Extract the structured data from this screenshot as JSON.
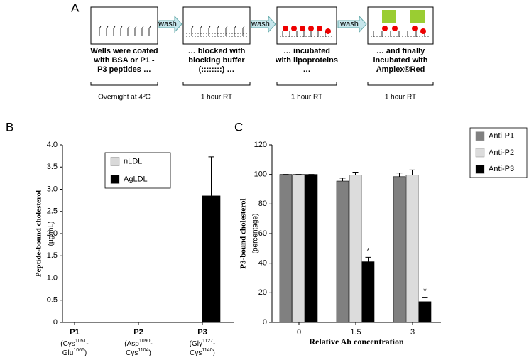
{
  "panel_a": {
    "label": "A",
    "arrows": [
      "wash",
      "wash",
      "wash"
    ],
    "steps": [
      {
        "lines": [
          "Wells were coated",
          "with BSA or P1 -",
          "P3 peptides …"
        ],
        "time": "Overnight at 4ºC"
      },
      {
        "lines": [
          "… blocked with",
          "blocking buffer",
          "(::::::::) …"
        ],
        "time": "1 hour RT"
      },
      {
        "lines": [
          "… incubated",
          "with lipoproteins",
          "…"
        ],
        "time": "1 hour RT"
      },
      {
        "lines": [
          "… and finally",
          "incubated with",
          "Amplex®Red"
        ],
        "time": "1 hour RT"
      }
    ]
  },
  "chart_data": [
    {
      "type": "bar",
      "panel_label": "B",
      "y_label": "Peptide-bound cholesterol",
      "y_unit": "(µg/mL)",
      "categories": [
        "P1",
        "P2",
        "P3"
      ],
      "category_details": [
        [
          [
            "(Cys",
            "1051",
            "-"
          ],
          [
            "Glu",
            "1066",
            ")"
          ]
        ],
        [
          [
            "(Asp",
            "1090",
            "-"
          ],
          [
            "Cys",
            "1104",
            ")"
          ]
        ],
        [
          [
            "(Gly",
            "1127",
            "-"
          ],
          [
            "Cys",
            "1140",
            ")"
          ]
        ]
      ],
      "series": [
        {
          "name": "nLDL",
          "color": "#d9d9d9",
          "values": [
            0,
            0,
            0
          ],
          "errors": [
            0,
            0,
            0
          ]
        },
        {
          "name": "AgLDL",
          "color": "#000000",
          "values": [
            0,
            0,
            2.85
          ],
          "errors": [
            0,
            0,
            0.88
          ]
        }
      ],
      "ylim": [
        0,
        4
      ],
      "yticks": [
        0,
        0.5,
        {
          "value": 1,
          "label": "1.0"
        },
        1.5,
        {
          "value": 2,
          "label": "2.0"
        },
        2.5,
        {
          "value": 3,
          "label": "3.0"
        },
        3.5,
        {
          "value": 4,
          "label": "4.0"
        }
      ],
      "legend": "upper left"
    },
    {
      "type": "bar",
      "panel_label": "C",
      "y_label": "P3-bound cholesterol",
      "y_unit": "(percentage)",
      "x_label": "Relative Ab concentration",
      "categories": [
        "0",
        "1.5",
        "3"
      ],
      "series": [
        {
          "name": "Anti-P1",
          "color": "#808080",
          "values": [
            100,
            95.5,
            98.5
          ],
          "errors": [
            0,
            2,
            2.5
          ]
        },
        {
          "name": "Anti-P2",
          "color": "#dcdcdc",
          "values": [
            100,
            99.5,
            99.5
          ],
          "errors": [
            0,
            2,
            3.5
          ]
        },
        {
          "name": "Anti-P3",
          "color": "#000000",
          "values": [
            100,
            41,
            14
          ],
          "errors": [
            0,
            3,
            3
          ]
        }
      ],
      "annotations": [
        {
          "text": "*",
          "category": "1.5",
          "series": "Anti-P3"
        },
        {
          "text": "*",
          "category": "3",
          "series": "Anti-P3"
        }
      ],
      "ylim": [
        0,
        120
      ],
      "yticks": [
        0,
        20,
        40,
        60,
        80,
        100,
        120
      ],
      "legend": "outside right"
    }
  ]
}
